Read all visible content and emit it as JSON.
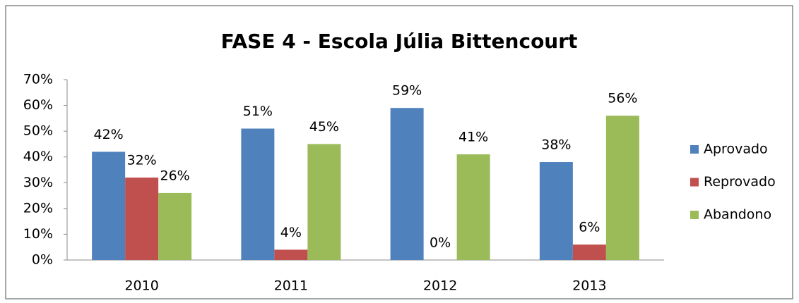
{
  "chart_data": {
    "type": "bar",
    "title": "FASE 4 - Escola Júlia Bittencourt",
    "categories": [
      "2010",
      "2011",
      "2012",
      "2013"
    ],
    "series": [
      {
        "name": "Aprovado",
        "color": "#4f81bd",
        "values": [
          42,
          51,
          59,
          38
        ],
        "value_labels": [
          "42%",
          "51%",
          "59%",
          "38%"
        ]
      },
      {
        "name": "Reprovado",
        "color": "#c0504d",
        "values": [
          32,
          4,
          0,
          6
        ],
        "value_labels": [
          "32%",
          "4%",
          "0%",
          "6%"
        ]
      },
      {
        "name": "Abandono",
        "color": "#9bbb59",
        "values": [
          26,
          45,
          41,
          56
        ],
        "value_labels": [
          "26%",
          "45%",
          "41%",
          "56%"
        ]
      }
    ],
    "ylim": [
      0,
      70
    ],
    "yticks": [
      {
        "value": 0,
        "label": "0%"
      },
      {
        "value": 10,
        "label": "10%"
      },
      {
        "value": 20,
        "label": "20%"
      },
      {
        "value": 30,
        "label": "30%"
      },
      {
        "value": 40,
        "label": "40%"
      },
      {
        "value": 50,
        "label": "50%"
      },
      {
        "value": 60,
        "label": "60%"
      },
      {
        "value": 70,
        "label": "70%"
      }
    ],
    "grid": false,
    "legend": "right"
  }
}
